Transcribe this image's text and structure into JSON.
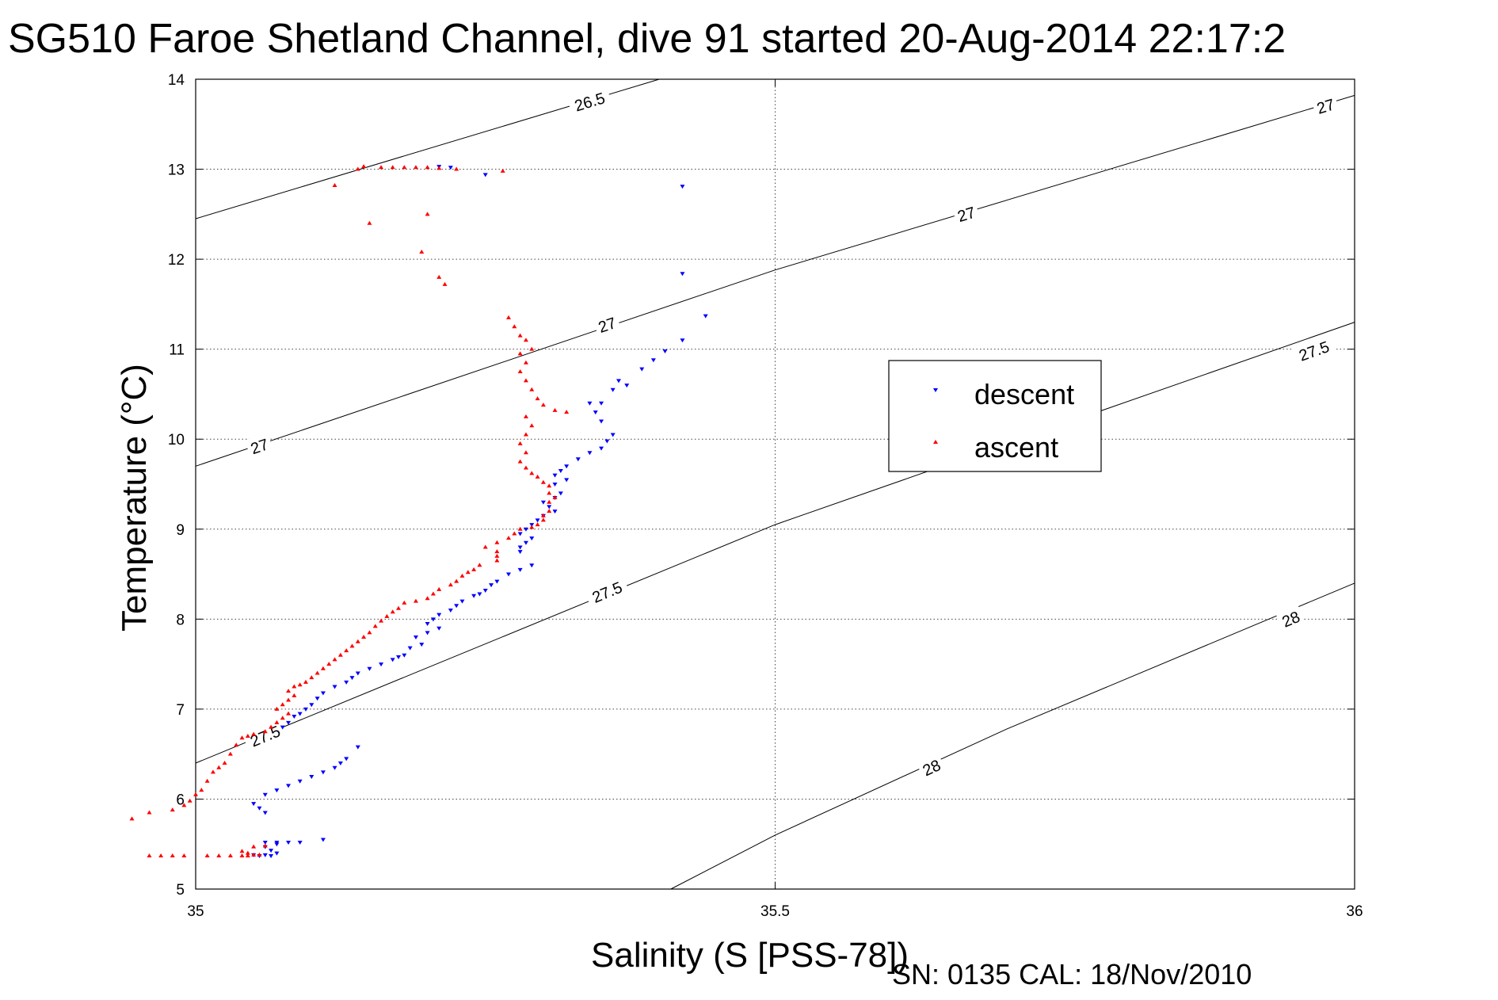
{
  "chart_data": {
    "type": "scatter",
    "title": "SG510 Faroe Shetland Channel, dive 91 started 20-Aug-2014 22:17:2",
    "xlabel": "Salinity (S [PSS-78])",
    "ylabel": "Temperature (°C)",
    "footer": "SN: 0135  CAL: 18/Nov/2010",
    "xlim": [
      35,
      36
    ],
    "ylim": [
      5,
      14
    ],
    "xticks": [
      {
        "value": 35,
        "label": "35"
      },
      {
        "value": 35.5,
        "label": "35.5"
      },
      {
        "value": 36,
        "label": "36"
      }
    ],
    "yticks": [
      {
        "value": 5,
        "label": "5"
      },
      {
        "value": 6,
        "label": "6"
      },
      {
        "value": 7,
        "label": "7"
      },
      {
        "value": 8,
        "label": "8"
      },
      {
        "value": 9,
        "label": "9"
      },
      {
        "value": 10,
        "label": "10"
      },
      {
        "value": 11,
        "label": "11"
      },
      {
        "value": 12,
        "label": "12"
      },
      {
        "value": 13,
        "label": "13"
      },
      {
        "value": 14,
        "label": "14"
      }
    ],
    "grid": true,
    "legend": {
      "placement": "right-center"
    },
    "density_contours": [
      {
        "level": "26.5",
        "points": [
          [
            35.0,
            12.45
          ],
          [
            35.4,
            14.0
          ]
        ],
        "labels": [
          {
            "text": "26.5",
            "at": [
              35.34,
              13.75
            ]
          }
        ]
      },
      {
        "level": "27",
        "points": [
          [
            35.0,
            9.7
          ],
          [
            35.5,
            11.88
          ],
          [
            36.0,
            13.82
          ]
        ],
        "labels": [
          {
            "text": "27",
            "at": [
              35.055,
              9.92
            ]
          },
          {
            "text": "27",
            "at": [
              35.355,
              11.27
            ]
          },
          {
            "text": "27",
            "at": [
              35.665,
              12.5
            ]
          },
          {
            "text": "27",
            "at": [
              35.975,
              13.7
            ]
          }
        ]
      },
      {
        "level": "27.5",
        "points": [
          [
            35.0,
            6.4
          ],
          [
            35.5,
            9.05
          ],
          [
            36.0,
            11.3
          ]
        ],
        "labels": [
          {
            "text": "27.5",
            "at": [
              35.06,
              6.7
            ]
          },
          {
            "text": "27.5",
            "at": [
              35.355,
              8.3
            ]
          },
          {
            "text": "27.5",
            "at": [
              35.965,
              10.98
            ]
          }
        ]
      },
      {
        "level": "28",
        "points": [
          [
            35.41,
            5.0
          ],
          [
            35.5,
            5.6
          ],
          [
            35.7,
            6.78
          ],
          [
            36.0,
            8.4
          ]
        ],
        "labels": [
          {
            "text": "28",
            "at": [
              35.635,
              6.35
            ]
          },
          {
            "text": "28",
            "at": [
              35.945,
              8.0
            ]
          }
        ]
      }
    ],
    "series": [
      {
        "name": "descent",
        "color": "#0000ff",
        "marker": "triangle-down",
        "points": [
          [
            35.21,
            13.03
          ],
          [
            35.22,
            13.02
          ],
          [
            35.25,
            12.94
          ],
          [
            35.42,
            12.81
          ],
          [
            35.42,
            11.84
          ],
          [
            35.44,
            11.37
          ],
          [
            35.42,
            11.1
          ],
          [
            35.405,
            10.98
          ],
          [
            35.395,
            10.88
          ],
          [
            35.385,
            10.78
          ],
          [
            35.372,
            10.6
          ],
          [
            35.365,
            10.65
          ],
          [
            35.36,
            10.55
          ],
          [
            35.35,
            10.4
          ],
          [
            35.34,
            10.4
          ],
          [
            35.345,
            10.3
          ],
          [
            35.35,
            10.2
          ],
          [
            35.36,
            10.05
          ],
          [
            35.355,
            9.98
          ],
          [
            35.35,
            9.9
          ],
          [
            35.34,
            9.85
          ],
          [
            35.33,
            9.78
          ],
          [
            35.32,
            9.7
          ],
          [
            35.315,
            9.65
          ],
          [
            35.31,
            9.6
          ],
          [
            35.31,
            9.5
          ],
          [
            35.32,
            9.55
          ],
          [
            35.315,
            9.4
          ],
          [
            35.31,
            9.35
          ],
          [
            35.3,
            9.3
          ],
          [
            35.305,
            9.25
          ],
          [
            35.31,
            9.2
          ],
          [
            35.3,
            9.15
          ],
          [
            35.295,
            9.1
          ],
          [
            35.29,
            9.05
          ],
          [
            35.285,
            9.0
          ],
          [
            35.28,
            8.95
          ],
          [
            35.29,
            8.9
          ],
          [
            35.285,
            8.85
          ],
          [
            35.28,
            8.8
          ],
          [
            35.28,
            8.75
          ],
          [
            35.29,
            8.6
          ],
          [
            35.28,
            8.55
          ],
          [
            35.27,
            8.5
          ],
          [
            35.26,
            8.42
          ],
          [
            35.255,
            8.38
          ],
          [
            35.25,
            8.32
          ],
          [
            35.245,
            8.28
          ],
          [
            35.24,
            8.26
          ],
          [
            35.23,
            8.2
          ],
          [
            35.225,
            8.15
          ],
          [
            35.22,
            8.1
          ],
          [
            35.21,
            8.05
          ],
          [
            35.205,
            8.0
          ],
          [
            35.2,
            7.95
          ],
          [
            35.21,
            7.9
          ],
          [
            35.2,
            7.85
          ],
          [
            35.19,
            7.8
          ],
          [
            35.195,
            7.72
          ],
          [
            35.185,
            7.68
          ],
          [
            35.18,
            7.6
          ],
          [
            35.175,
            7.58
          ],
          [
            35.17,
            7.55
          ],
          [
            35.16,
            7.5
          ],
          [
            35.15,
            7.45
          ],
          [
            35.14,
            7.4
          ],
          [
            35.135,
            7.35
          ],
          [
            35.13,
            7.3
          ],
          [
            35.12,
            7.25
          ],
          [
            35.11,
            7.18
          ],
          [
            35.105,
            7.12
          ],
          [
            35.1,
            7.05
          ],
          [
            35.095,
            7.0
          ],
          [
            35.09,
            6.95
          ],
          [
            35.085,
            6.92
          ],
          [
            35.08,
            6.85
          ],
          [
            35.075,
            6.8
          ],
          [
            35.14,
            6.58
          ],
          [
            35.13,
            6.45
          ],
          [
            35.125,
            6.4
          ],
          [
            35.12,
            6.35
          ],
          [
            35.11,
            6.3
          ],
          [
            35.1,
            6.25
          ],
          [
            35.09,
            6.2
          ],
          [
            35.08,
            6.15
          ],
          [
            35.07,
            6.1
          ],
          [
            35.06,
            6.05
          ],
          [
            35.05,
            5.95
          ],
          [
            35.055,
            5.9
          ],
          [
            35.06,
            5.85
          ],
          [
            35.11,
            5.55
          ],
          [
            35.09,
            5.52
          ],
          [
            35.08,
            5.52
          ],
          [
            35.07,
            5.52
          ],
          [
            35.06,
            5.52
          ],
          [
            35.07,
            5.5
          ],
          [
            35.06,
            5.47
          ],
          [
            35.065,
            5.43
          ],
          [
            35.07,
            5.4
          ],
          [
            35.06,
            5.38
          ],
          [
            35.065,
            5.37
          ],
          [
            35.055,
            5.37
          ],
          [
            35.05,
            5.38
          ]
        ]
      },
      {
        "name": "ascent",
        "color": "#ff0000",
        "marker": "triangle-up",
        "points": [
          [
            35.145,
            13.03
          ],
          [
            35.16,
            13.02
          ],
          [
            35.17,
            13.02
          ],
          [
            35.18,
            13.02
          ],
          [
            35.19,
            13.02
          ],
          [
            35.2,
            13.02
          ],
          [
            35.21,
            13.01
          ],
          [
            35.225,
            13.0
          ],
          [
            35.14,
            13.0
          ],
          [
            35.265,
            12.98
          ],
          [
            35.12,
            12.82
          ],
          [
            35.2,
            12.5
          ],
          [
            35.15,
            12.4
          ],
          [
            35.195,
            12.08
          ],
          [
            35.21,
            11.8
          ],
          [
            35.215,
            11.72
          ],
          [
            35.27,
            11.35
          ],
          [
            35.275,
            11.25
          ],
          [
            35.28,
            11.15
          ],
          [
            35.285,
            11.1
          ],
          [
            35.29,
            11.0
          ],
          [
            35.28,
            10.95
          ],
          [
            35.285,
            10.85
          ],
          [
            35.28,
            10.75
          ],
          [
            35.285,
            10.65
          ],
          [
            35.29,
            10.55
          ],
          [
            35.295,
            10.45
          ],
          [
            35.3,
            10.38
          ],
          [
            35.31,
            10.32
          ],
          [
            35.32,
            10.3
          ],
          [
            35.285,
            10.25
          ],
          [
            35.29,
            10.15
          ],
          [
            35.285,
            10.05
          ],
          [
            35.28,
            9.95
          ],
          [
            35.285,
            9.85
          ],
          [
            35.28,
            9.75
          ],
          [
            35.285,
            9.68
          ],
          [
            35.29,
            9.62
          ],
          [
            35.295,
            9.58
          ],
          [
            35.3,
            9.52
          ],
          [
            35.305,
            9.48
          ],
          [
            35.305,
            9.4
          ],
          [
            35.31,
            9.35
          ],
          [
            35.305,
            9.3
          ],
          [
            35.305,
            9.2
          ],
          [
            35.3,
            9.15
          ],
          [
            35.3,
            9.1
          ],
          [
            35.295,
            9.05
          ],
          [
            35.29,
            9.02
          ],
          [
            35.28,
            9.0
          ],
          [
            35.275,
            8.95
          ],
          [
            35.27,
            8.9
          ],
          [
            35.26,
            8.85
          ],
          [
            35.25,
            8.8
          ],
          [
            35.26,
            8.75
          ],
          [
            35.26,
            8.7
          ],
          [
            35.26,
            8.65
          ],
          [
            35.245,
            8.6
          ],
          [
            35.24,
            8.55
          ],
          [
            35.235,
            8.52
          ],
          [
            35.23,
            8.48
          ],
          [
            35.225,
            8.42
          ],
          [
            35.22,
            8.38
          ],
          [
            35.21,
            8.33
          ],
          [
            35.205,
            8.28
          ],
          [
            35.2,
            8.23
          ],
          [
            35.19,
            8.2
          ],
          [
            35.18,
            8.18
          ],
          [
            35.175,
            8.12
          ],
          [
            35.17,
            8.08
          ],
          [
            35.165,
            8.03
          ],
          [
            35.16,
            7.98
          ],
          [
            35.155,
            7.92
          ],
          [
            35.15,
            7.85
          ],
          [
            35.145,
            7.8
          ],
          [
            35.14,
            7.75
          ],
          [
            35.135,
            7.7
          ],
          [
            35.13,
            7.65
          ],
          [
            35.125,
            7.6
          ],
          [
            35.12,
            7.55
          ],
          [
            35.115,
            7.5
          ],
          [
            35.11,
            7.45
          ],
          [
            35.105,
            7.4
          ],
          [
            35.1,
            7.35
          ],
          [
            35.095,
            7.3
          ],
          [
            35.09,
            7.27
          ],
          [
            35.085,
            7.25
          ],
          [
            35.08,
            7.2
          ],
          [
            35.085,
            7.15
          ],
          [
            35.08,
            7.1
          ],
          [
            35.075,
            7.05
          ],
          [
            35.07,
            7.0
          ],
          [
            35.08,
            6.95
          ],
          [
            35.075,
            6.9
          ],
          [
            35.07,
            6.85
          ],
          [
            35.065,
            6.8
          ],
          [
            35.06,
            6.75
          ],
          [
            35.05,
            6.72
          ],
          [
            35.045,
            6.7
          ],
          [
            35.04,
            6.68
          ],
          [
            35.035,
            6.6
          ],
          [
            35.03,
            6.5
          ],
          [
            35.025,
            6.4
          ],
          [
            35.02,
            6.35
          ],
          [
            35.015,
            6.3
          ],
          [
            35.01,
            6.2
          ],
          [
            35.005,
            6.1
          ],
          [
            35.0,
            6.05
          ],
          [
            34.995,
            5.98
          ],
          [
            34.99,
            5.93
          ],
          [
            34.98,
            5.88
          ],
          [
            34.96,
            5.85
          ],
          [
            34.945,
            5.78
          ],
          [
            35.06,
            5.48
          ],
          [
            35.05,
            5.47
          ],
          [
            35.04,
            5.42
          ],
          [
            35.045,
            5.4
          ],
          [
            35.05,
            5.38
          ],
          [
            35.055,
            5.38
          ],
          [
            35.045,
            5.37
          ],
          [
            35.04,
            5.37
          ],
          [
            35.03,
            5.37
          ],
          [
            35.02,
            5.37
          ],
          [
            35.01,
            5.37
          ],
          [
            34.99,
            5.37
          ],
          [
            34.98,
            5.37
          ],
          [
            34.97,
            5.37
          ],
          [
            34.96,
            5.37
          ]
        ]
      }
    ]
  }
}
